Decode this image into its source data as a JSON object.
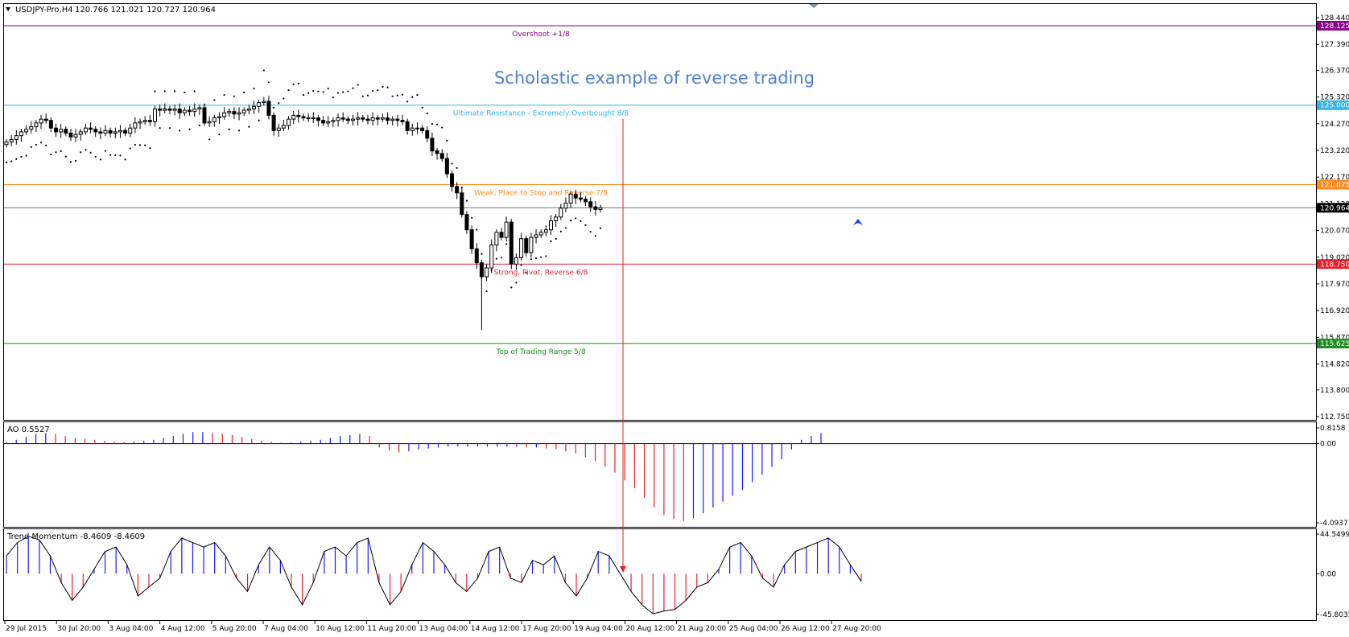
{
  "header": {
    "symbol_label": "USDJPY-Pro,H4",
    "ohlc_label": "120.766 121.021 120.727 120.964"
  },
  "annotation_title": "Scholastic example of reverse trading",
  "colors": {
    "overshoot": "#8b008b",
    "ultimate": "#33b5e5",
    "weak": "#ff8c1a",
    "strong": "#e8202a",
    "top_range": "#1e8c1e",
    "price_line": "#607d8b",
    "up_bar": "#1a1aff",
    "down_bar": "#e8202a",
    "arrow": "#e8202a"
  },
  "price_axis": {
    "ticks": [
      "128.440",
      "127.390",
      "126.370",
      "125.320",
      "124.270",
      "123.220",
      "122.170",
      "121.120",
      "120.070",
      "119.020",
      "117.970",
      "116.920",
      "115.870",
      "114.820",
      "113.800",
      "112.750"
    ]
  },
  "murrey_levels": [
    {
      "key": "overshoot",
      "label": "Overshoot  +1/8",
      "price_label": "128.125",
      "value": 128.125
    },
    {
      "key": "ultimate",
      "label": "Ultimate Resistance - Extremely Overbought  8/8",
      "price_label": "125.000",
      "value": 125.0
    },
    {
      "key": "weak",
      "label": "Weak, Place to Stop and Reverse  7/8",
      "price_label": "121.875",
      "value": 121.875
    },
    {
      "key": "strong",
      "label": "Strong, Pivot, Reverse  6/8",
      "price_label": "118.750",
      "value": 118.75
    },
    {
      "key": "top_range",
      "label": "Top of Trading Range  5/8",
      "price_label": "115.625",
      "value": 115.625
    }
  ],
  "current_price": {
    "label": "120.964",
    "value": 120.964
  },
  "ao_panel": {
    "label": "AO 0.5527",
    "ticks": [
      "0.8158",
      "0.00",
      "-4.0937"
    ]
  },
  "tm_panel": {
    "label": "Trend Momentum -8.4609 -8.4609",
    "ticks": [
      "44.5499",
      "0.00",
      "-45.8035"
    ]
  },
  "time_axis": {
    "labels": [
      "29 Jul 2015",
      "30 Jul 20:00",
      "3 Aug 04:00",
      "4 Aug 12:00",
      "5 Aug 20:00",
      "7 Aug 04:00",
      "10 Aug 12:00",
      "11 Aug 20:00",
      "13 Aug 04:00",
      "14 Aug 12:00",
      "17 Aug 20:00",
      "19 Aug 04:00",
      "20 Aug 12:00",
      "21 Aug 20:00",
      "25 Aug 04:00",
      "26 Aug 12:00",
      "27 Aug 20:00"
    ]
  },
  "chart_data": [
    {
      "type": "candlestick",
      "title": "USDJPY-Pro,H4",
      "ylim": [
        112.75,
        128.44
      ],
      "x_start": "29 Jul 2015",
      "x_interval": "H4",
      "close": [
        123.55,
        123.65,
        123.8,
        123.95,
        124.05,
        124.15,
        124.3,
        124.45,
        124.4,
        124.1,
        123.95,
        124.05,
        123.9,
        123.75,
        123.85,
        123.95,
        124.1,
        124.05,
        123.95,
        123.9,
        124.0,
        123.9,
        123.95,
        124.0,
        123.9,
        124.1,
        124.3,
        124.35,
        124.4,
        124.35,
        124.85,
        124.8,
        124.85,
        124.8,
        124.85,
        124.7,
        124.8,
        124.75,
        124.85,
        124.9,
        124.3,
        124.35,
        124.5,
        124.55,
        124.7,
        124.75,
        124.65,
        124.7,
        124.8,
        124.85,
        124.95,
        125.1,
        125.15,
        124.6,
        124.0,
        124.1,
        124.2,
        124.45,
        124.6,
        124.55,
        124.5,
        124.5,
        124.5,
        124.4,
        124.3,
        124.35,
        124.4,
        124.5,
        124.45,
        124.4,
        124.45,
        124.5,
        124.45,
        124.4,
        124.5,
        124.45,
        124.5,
        124.4,
        124.45,
        124.4,
        124.35,
        124.0,
        124.1,
        124.1,
        124.0,
        123.7,
        123.2,
        123.1,
        122.9,
        122.3,
        121.8,
        121.55,
        120.7,
        120.1,
        119.35,
        118.8,
        118.25,
        118.6,
        119.5,
        120.0,
        119.8,
        120.4,
        118.75,
        119.0,
        119.75,
        119.2,
        119.8,
        119.9,
        120.0,
        120.1,
        120.45,
        120.6,
        120.95,
        121.15,
        121.5,
        121.35,
        121.3,
        121.2,
        121.0,
        120.9,
        120.96
      ],
      "overlay_sar": true,
      "notes": "Approximate closes read from the price axis; dotted parabolic SAR overlay; horizontal Murrey Math levels"
    },
    {
      "type": "bar",
      "title": "AO 0.5527",
      "ylim": [
        -4.0937,
        0.8158
      ],
      "values": [
        0.1,
        0.2,
        0.35,
        0.5,
        0.55,
        0.5,
        0.4,
        0.3,
        0.25,
        0.2,
        0.15,
        0.1,
        0.08,
        0.1,
        0.15,
        0.2,
        0.3,
        0.4,
        0.5,
        0.6,
        0.6,
        0.55,
        0.5,
        0.45,
        0.35,
        0.25,
        0.15,
        0.1,
        0.05,
        0.05,
        0.1,
        0.15,
        0.2,
        0.3,
        0.4,
        0.45,
        0.5,
        0.4,
        -0.2,
        -0.35,
        -0.45,
        -0.4,
        -0.3,
        -0.25,
        -0.2,
        -0.15,
        -0.15,
        -0.15,
        -0.15,
        -0.15,
        -0.15,
        -0.15,
        -0.15,
        -0.2,
        -0.2,
        -0.25,
        -0.3,
        -0.4,
        -0.5,
        -0.7,
        -0.9,
        -1.2,
        -1.5,
        -1.9,
        -2.3,
        -2.8,
        -3.3,
        -3.7,
        -3.9,
        -4.0,
        -3.85,
        -3.6,
        -3.3,
        -3.0,
        -2.7,
        -2.4,
        -2.0,
        -1.6,
        -1.2,
        -0.8,
        -0.3,
        0.2,
        0.4,
        0.55
      ]
    },
    {
      "type": "bar",
      "title": "Trend Momentum -8.4609 -8.4609",
      "ylim": [
        -45.8035,
        44.5499
      ],
      "values": [
        20,
        35,
        42,
        38,
        20,
        -10,
        -30,
        -15,
        5,
        25,
        30,
        10,
        -25,
        -15,
        -5,
        25,
        40,
        35,
        30,
        35,
        20,
        -5,
        -20,
        10,
        30,
        15,
        -15,
        -35,
        -10,
        25,
        30,
        20,
        35,
        40,
        -10,
        -35,
        -20,
        10,
        35,
        25,
        10,
        -10,
        -20,
        -5,
        25,
        30,
        -5,
        -10,
        15,
        10,
        20,
        -10,
        -25,
        -5,
        25,
        20,
        0,
        -20,
        -35,
        -45,
        -42,
        -40,
        -30,
        -15,
        -10,
        5,
        30,
        35,
        20,
        -5,
        -15,
        10,
        25,
        30,
        35,
        40,
        30,
        10,
        -8.46
      ]
    }
  ]
}
